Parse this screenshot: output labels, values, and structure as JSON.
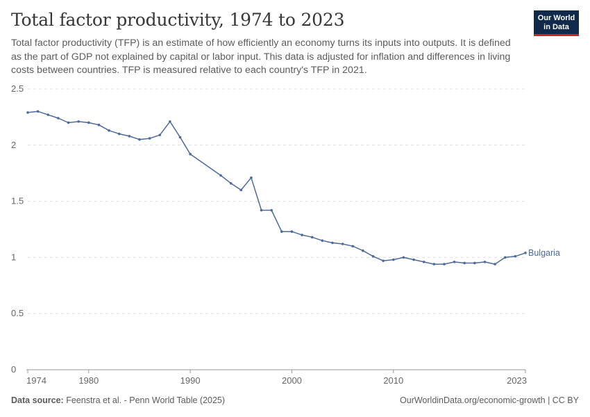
{
  "header": {
    "title": "Total factor productivity, 1974 to 2023",
    "subtitle": "Total factor productivity (TFP) is an estimate of how efficiently an economy turns its inputs into outputs. It is defined as the part of GDP not explained by capital or labor input. This data is adjusted for inflation and differences in living costs between countries. TFP is measured relative to each country's TFP in 2021."
  },
  "logo": {
    "line1": "Our World",
    "line2": "in Data"
  },
  "footer": {
    "source_label": "Data source:",
    "source_text": "Feenstra et al. - Penn World Table (2025)",
    "credit": "OurWorldinData.org/economic-growth | CC BY"
  },
  "colors": {
    "series": "#4c6a9c",
    "grid": "#dddddd",
    "axis_text": "#666666",
    "title": "#373737",
    "logo_bg": "#0f2a4a",
    "logo_accent": "#c8232f"
  },
  "chart_data": {
    "type": "line",
    "xlim": [
      1974,
      2023
    ],
    "ylim": [
      0,
      2.5
    ],
    "x_ticks": [
      1974,
      1980,
      1990,
      2000,
      2010,
      2023
    ],
    "y_ticks": [
      0,
      0.5,
      1,
      1.5,
      2,
      2.5
    ],
    "y_tick_labels": [
      "0",
      "0.5",
      "1",
      "1.5",
      "2",
      "2.5"
    ],
    "grid": "horizontal-dashed",
    "series": [
      {
        "name": "Bulgaria",
        "x": [
          1974,
          1975,
          1976,
          1977,
          1978,
          1979,
          1980,
          1981,
          1982,
          1983,
          1984,
          1985,
          1986,
          1987,
          1988,
          1989,
          1990,
          1993,
          1994,
          1995,
          1996,
          1997,
          1998,
          1999,
          2000,
          2001,
          2002,
          2003,
          2004,
          2005,
          2006,
          2007,
          2008,
          2009,
          2010,
          2011,
          2012,
          2013,
          2014,
          2015,
          2016,
          2017,
          2018,
          2019,
          2020,
          2021,
          2022,
          2023
        ],
        "y": [
          2.29,
          2.3,
          2.27,
          2.24,
          2.2,
          2.21,
          2.2,
          2.18,
          2.13,
          2.1,
          2.08,
          2.05,
          2.06,
          2.09,
          2.21,
          2.07,
          1.92,
          1.73,
          1.66,
          1.6,
          1.71,
          1.42,
          1.42,
          1.23,
          1.23,
          1.2,
          1.18,
          1.15,
          1.13,
          1.12,
          1.1,
          1.06,
          1.01,
          0.97,
          0.98,
          1.0,
          0.98,
          0.96,
          0.94,
          0.94,
          0.96,
          0.95,
          0.95,
          0.96,
          0.94,
          1.0,
          1.01,
          1.04
        ]
      }
    ]
  }
}
